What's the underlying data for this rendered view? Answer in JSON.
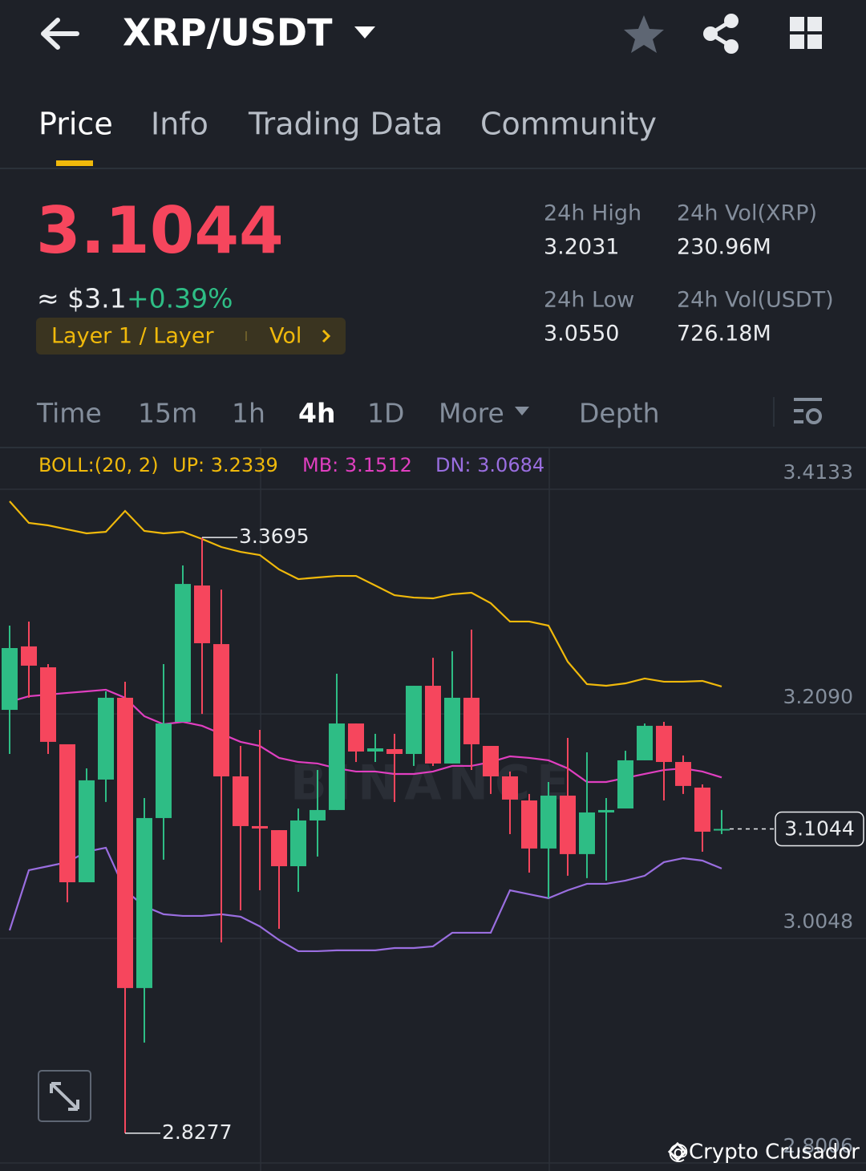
{
  "header": {
    "title": "XRP/USDT"
  },
  "tabs": [
    "Price",
    "Info",
    "Trading Data",
    "Community"
  ],
  "price": {
    "last": "3.1044",
    "fiat": "≈ $3.1",
    "change": "+0.39%",
    "tag": "Layer 1 / Layer",
    "tag_action": "Vol"
  },
  "stats": [
    {
      "label": "24h High",
      "value": "3.2031"
    },
    {
      "label": "24h Vol(XRP)",
      "value": "230.96M"
    },
    {
      "label": "24h Low",
      "value": "3.0550"
    },
    {
      "label": "24h Vol(USDT)",
      "value": "726.18M"
    }
  ],
  "intervals": [
    "Time",
    "15m",
    "1h",
    "4h",
    "1D",
    "More",
    "Depth"
  ],
  "active_interval": "4h",
  "watermark": "@Crypto Crusador",
  "chart_data": {
    "type": "candlestick",
    "indicator": "BOLL:(20, 2)",
    "chart_watermark": "BINANCE",
    "up_color": "#2ebd85",
    "down_color": "#f6465d",
    "ylim": [
      2.8006,
      3.4498
    ],
    "yticks": [
      3.4133,
      {
        "value": 3.209,
        "label": "3.2090"
      },
      3.0048,
      2.8006
    ],
    "grid": true,
    "open": [
      3.2127,
      3.2704,
      3.2514,
      3.1814,
      3.0559,
      3.1493,
      3.2237,
      2.9597,
      3.1143,
      3.2018,
      3.3258,
      3.2725,
      3.1522,
      3.107,
      3.1033,
      3.0705,
      3.1121,
      3.1216,
      3.2003,
      3.1748,
      3.177,
      3.1726,
      3.2346,
      3.1639,
      3.2237,
      3.1799,
      3.1522,
      3.1303,
      3.0866,
      3.1347,
      3.0815,
      3.1194,
      3.123,
      3.1668,
      3.1982,
      3.1653,
      3.142,
      3.103
    ],
    "high": [
      3.2893,
      3.293,
      3.2543,
      3.1814,
      3.1595,
      3.2295,
      3.2383,
      3.1325,
      3.2543,
      3.344,
      3.3695,
      3.3221,
      3.1799,
      3.1945,
      3.1033,
      3.123,
      3.158,
      3.2456,
      3.2003,
      3.1909,
      3.1909,
      3.2346,
      3.2601,
      3.266,
      3.2857,
      3.1799,
      3.1566,
      3.1362,
      3.1471,
      3.1872,
      3.1741,
      3.1325,
      3.1755,
      3.2003,
      3.2018,
      3.1712,
      3.1449,
      3.1216
    ],
    "low": [
      3.1726,
      3.2237,
      3.1726,
      3.0377,
      3.0559,
      3.1289,
      2.8277,
      2.9101,
      3.0764,
      3.2018,
      3.209,
      3.0012,
      3.0304,
      3.0486,
      3.0136,
      3.0472,
      3.0793,
      3.1216,
      3.1653,
      3.1653,
      3.1289,
      3.1617,
      3.1617,
      3.1639,
      3.158,
      3.1362,
      3.0997,
      3.0647,
      3.0414,
      3.0618,
      3.0596,
      3.0574,
      3.123,
      3.1668,
      3.1303,
      3.1362,
      3.0837,
      3.0997
    ],
    "close": [
      3.2689,
      3.2529,
      3.1836,
      3.0559,
      3.1486,
      3.2237,
      2.9597,
      3.1143,
      3.2003,
      3.3272,
      3.2733,
      3.1522,
      3.107,
      3.1048,
      3.0705,
      3.1121,
      3.1216,
      3.2003,
      3.1748,
      3.1777,
      3.1726,
      3.2346,
      3.1639,
      3.2237,
      3.1814,
      3.1522,
      3.1311,
      3.0866,
      3.1347,
      3.0815,
      3.1194,
      3.1216,
      3.1668,
      3.1982,
      3.1653,
      3.1435,
      3.1019,
      3.1044
    ],
    "overlays": [
      {
        "name": "UP: 3.2339",
        "color": "#f0b90b",
        "values": [
          3.4024,
          3.3827,
          3.3805,
          3.3768,
          3.3732,
          3.3746,
          3.3936,
          3.3754,
          3.3732,
          3.3746,
          3.3681,
          3.3608,
          3.3564,
          3.3535,
          3.3404,
          3.3316,
          3.3331,
          3.3345,
          3.3345,
          3.3258,
          3.317,
          3.3148,
          3.3141,
          3.3178,
          3.3192,
          3.3097,
          3.293,
          3.293,
          3.2893,
          3.2565,
          3.2361,
          3.2346,
          3.2368,
          3.2412,
          3.2383,
          3.2383,
          3.239,
          3.2339
        ]
      },
      {
        "name": "MB: 3.1512",
        "color": "#e03fc0",
        "values": [
          3.22,
          3.2251,
          3.2266,
          3.2281,
          3.2295,
          3.231,
          3.2237,
          3.2069,
          3.1996,
          3.2018,
          3.1982,
          3.1909,
          3.1836,
          3.1799,
          3.169,
          3.1653,
          3.1639,
          3.1595,
          3.1566,
          3.1566,
          3.1544,
          3.1544,
          3.1566,
          3.1617,
          3.1617,
          3.1653,
          3.1704,
          3.169,
          3.1668,
          3.1595,
          3.1471,
          3.1471,
          3.1508,
          3.1544,
          3.158,
          3.1595,
          3.1566,
          3.1512
        ]
      },
      {
        "name": "DN: 3.0684",
        "color": "#9a6ee0",
        "values": [
          3.0122,
          3.0669,
          3.0705,
          3.0742,
          3.0837,
          3.0873,
          3.0486,
          3.0341,
          3.0268,
          3.0253,
          3.0253,
          3.0268,
          3.0246,
          3.0158,
          3.0034,
          2.9932,
          2.9932,
          2.994,
          2.994,
          2.994,
          2.9961,
          2.9961,
          2.9976,
          3.01,
          3.01,
          3.01,
          3.0486,
          3.045,
          3.0414,
          3.0486,
          3.0545,
          3.0545,
          3.0574,
          3.0618,
          3.0742,
          3.0778,
          3.0756,
          3.0684
        ]
      }
    ]
  }
}
